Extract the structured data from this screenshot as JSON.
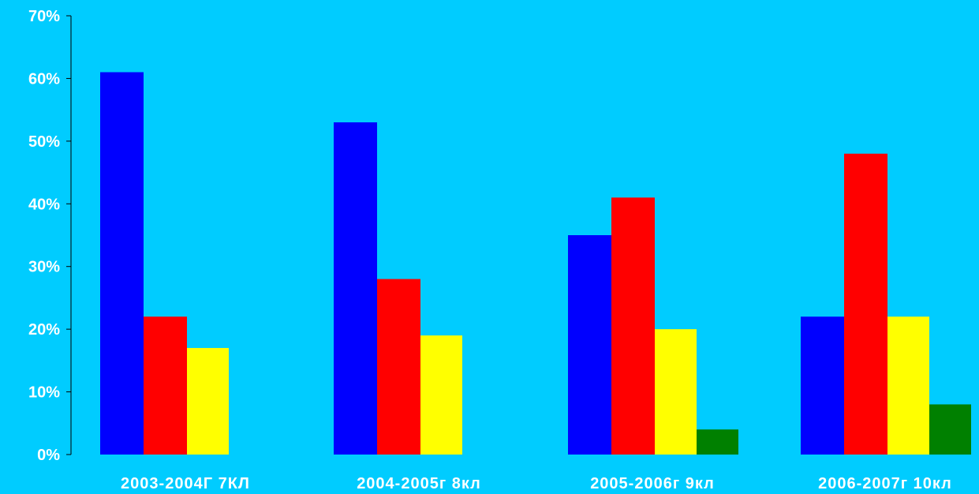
{
  "chart_data": {
    "type": "bar",
    "title": "",
    "xlabel": "",
    "ylabel": "",
    "ylim": [
      0,
      70
    ],
    "y_ticks": [
      "0%",
      "10%",
      "20%",
      "30%",
      "40%",
      "50%",
      "60%",
      "70%"
    ],
    "y_tick_values": [
      0,
      10,
      20,
      30,
      40,
      50,
      60,
      70
    ],
    "grid": false,
    "legend": "none",
    "background": "#00CCFF",
    "categories": [
      "2003-2004Г  7КЛ",
      "2004-2005г  8кл",
      "2005-2006г  9кл",
      "2006-2007г  10кл"
    ],
    "series": [
      {
        "color": "#0000FF",
        "values": [
          61,
          53,
          35,
          22
        ]
      },
      {
        "color": "#FF0000",
        "values": [
          22,
          28,
          41,
          48
        ]
      },
      {
        "color": "#FFFF00",
        "values": [
          17,
          19,
          20,
          22
        ]
      },
      {
        "color": "#008000",
        "values": [
          0,
          0,
          4,
          8
        ]
      }
    ]
  }
}
